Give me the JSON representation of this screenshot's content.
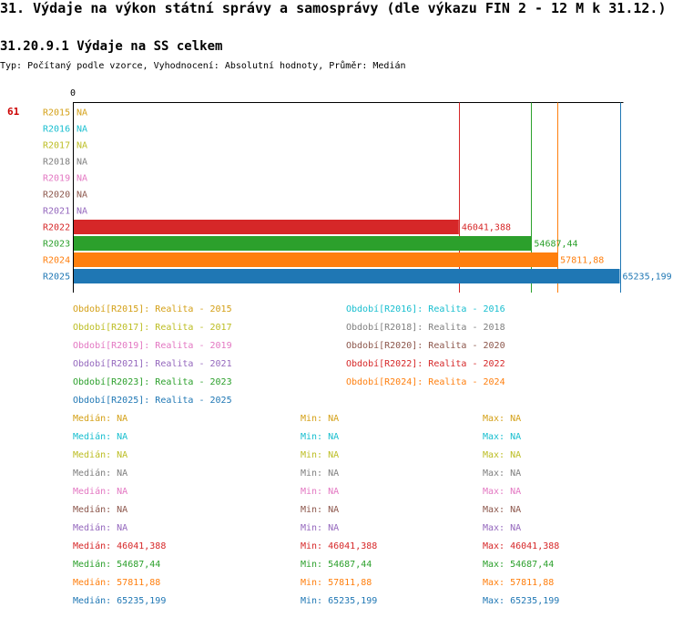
{
  "header": {
    "title": "31. Výdaje na výkon státní správy a samosprávy (dle výkazu FIN 2 - 12 M k 31.12.)",
    "subtitle": "31.20.9.1 Výdaje na SS celkem",
    "meta": "Typ: Počítaný podle vzorce, Vyhodnocení: Absolutní hodnoty, Průměr: Medián",
    "row_number": "61"
  },
  "chart_data": {
    "type": "bar",
    "orientation": "horizontal",
    "axis_zero_label": "0",
    "xlim": [
      0,
      65235.199
    ],
    "categories": [
      "R2015",
      "R2016",
      "R2017",
      "R2018",
      "R2019",
      "R2020",
      "R2021",
      "R2022",
      "R2023",
      "R2024",
      "R2025"
    ],
    "values": [
      null,
      null,
      null,
      null,
      null,
      null,
      null,
      46041.388,
      54687.44,
      57811.88,
      65235.199
    ],
    "value_labels": [
      "NA",
      "NA",
      "NA",
      "NA",
      "NA",
      "NA",
      "NA",
      "46041,388",
      "54687,44",
      "57811,88",
      "65235,199"
    ],
    "colors": [
      "#d4a017",
      "#17becf",
      "#bcbd22",
      "#7f7f7f",
      "#e377c2",
      "#8c564b",
      "#9467bd",
      "#d62728",
      "#2ca02c",
      "#ff7f0e",
      "#1f77b4"
    ]
  },
  "legend": [
    {
      "text": "Období[R2015]: Realita - 2015",
      "color": "#d4a017"
    },
    {
      "text": "Období[R2016]: Realita - 2016",
      "color": "#17becf"
    },
    {
      "text": "Období[R2017]: Realita - 2017",
      "color": "#bcbd22"
    },
    {
      "text": "Období[R2018]: Realita - 2018",
      "color": "#7f7f7f"
    },
    {
      "text": "Období[R2019]: Realita - 2019",
      "color": "#e377c2"
    },
    {
      "text": "Období[R2020]: Realita - 2020",
      "color": "#8c564b"
    },
    {
      "text": "Období[R2021]: Realita - 2021",
      "color": "#9467bd"
    },
    {
      "text": "Období[R2022]: Realita - 2022",
      "color": "#d62728"
    },
    {
      "text": "Období[R2023]: Realita - 2023",
      "color": "#2ca02c"
    },
    {
      "text": "Období[R2024]: Realita - 2024",
      "color": "#ff7f0e"
    },
    {
      "text": "Období[R2025]: Realita - 2025",
      "color": "#1f77b4"
    }
  ],
  "stats": [
    {
      "median": "Medián: NA",
      "min": "Min: NA",
      "max": "Max: NA",
      "color": "#d4a017"
    },
    {
      "median": "Medián: NA",
      "min": "Min: NA",
      "max": "Max: NA",
      "color": "#17becf"
    },
    {
      "median": "Medián: NA",
      "min": "Min: NA",
      "max": "Max: NA",
      "color": "#bcbd22"
    },
    {
      "median": "Medián: NA",
      "min": "Min: NA",
      "max": "Max: NA",
      "color": "#7f7f7f"
    },
    {
      "median": "Medián: NA",
      "min": "Min: NA",
      "max": "Max: NA",
      "color": "#e377c2"
    },
    {
      "median": "Medián: NA",
      "min": "Min: NA",
      "max": "Max: NA",
      "color": "#8c564b"
    },
    {
      "median": "Medián: NA",
      "min": "Min: NA",
      "max": "Max: NA",
      "color": "#9467bd"
    },
    {
      "median": "Medián: 46041,388",
      "min": "Min: 46041,388",
      "max": "Max: 46041,388",
      "color": "#d62728"
    },
    {
      "median": "Medián: 54687,44",
      "min": "Min: 54687,44",
      "max": "Max: 54687,44",
      "color": "#2ca02c"
    },
    {
      "median": "Medián: 57811,88",
      "min": "Min: 57811,88",
      "max": "Max: 57811,88",
      "color": "#ff7f0e"
    },
    {
      "median": "Medián: 65235,199",
      "min": "Min: 65235,199",
      "max": "Max: 65235,199",
      "color": "#1f77b4"
    }
  ]
}
